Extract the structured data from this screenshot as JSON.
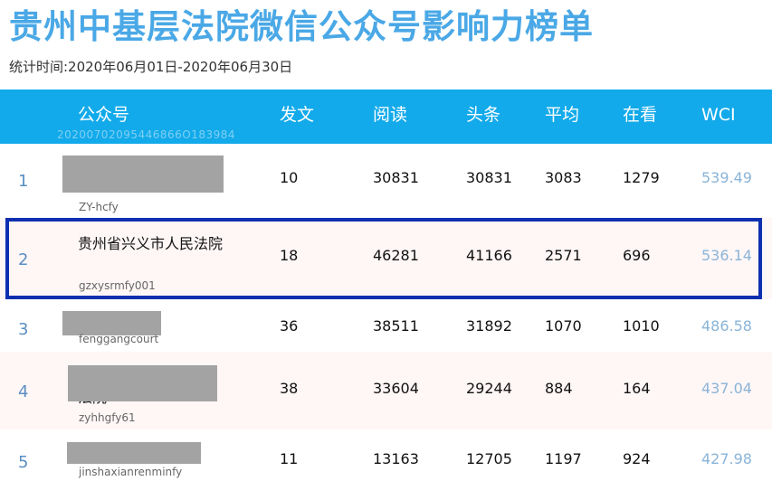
{
  "title": "贵州中基层法院微信公众号影响力榜单",
  "subtitle": "统计时间:2020年06月01日-2020年06月30日",
  "header": {
    "columns": [
      "公众号",
      "发文",
      "阅读",
      "头条",
      "平均",
      "在看",
      "WCI"
    ],
    "watermark": "20200702095446866O183984"
  },
  "rows": [
    {
      "rank": "1",
      "name": "",
      "account": "ZY-hcfy",
      "posts": "10",
      "reads": "30831",
      "headline": "30831",
      "average": "3083",
      "watching": "1279",
      "wci": "539.49"
    },
    {
      "rank": "2",
      "name": "贵州省兴义市人民法院",
      "account": "gzxysrmfy001",
      "posts": "18",
      "reads": "46281",
      "headline": "41166",
      "average": "2571",
      "watching": "696",
      "wci": "536.14"
    },
    {
      "rank": "3",
      "name": "",
      "account": "fenggangcourt",
      "posts": "36",
      "reads": "38511",
      "headline": "31892",
      "average": "1070",
      "watching": "1010",
      "wci": "486.58"
    },
    {
      "rank": "4",
      "name": "法院",
      "account": "zyhhgfy61",
      "posts": "38",
      "reads": "33604",
      "headline": "29244",
      "average": "884",
      "watching": "164",
      "wci": "437.04"
    },
    {
      "rank": "5",
      "name": "",
      "account": "jinshaxianrenminfy",
      "posts": "11",
      "reads": "13163",
      "headline": "12705",
      "average": "1197",
      "watching": "924",
      "wci": "427.98"
    }
  ]
}
